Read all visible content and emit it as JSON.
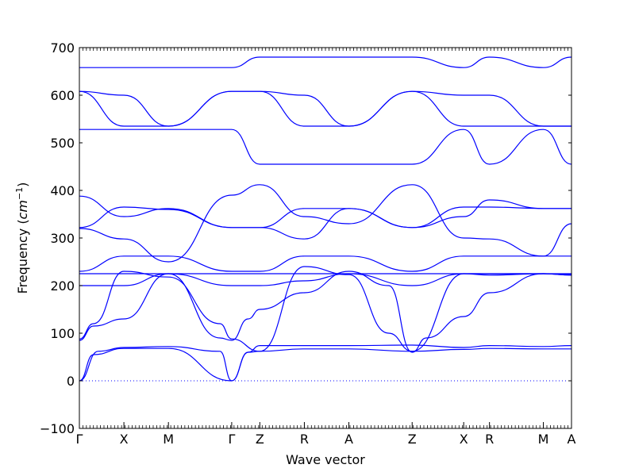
{
  "chart_data": {
    "type": "line",
    "xlabel": "Wave vector",
    "ylabel_text": "Frequency (",
    "ylabel_unit": "cm",
    "ylabel_exp": "−1",
    "ylabel_close": ")",
    "ylim": [
      -100,
      700
    ],
    "yticks": [
      -100,
      0,
      100,
      200,
      300,
      400,
      500,
      600,
      700
    ],
    "xlim": [
      0,
      10.5
    ],
    "kpoints": [
      {
        "label": "Γ",
        "x": 0
      },
      {
        "label": "X",
        "x": 0.95
      },
      {
        "label": "M",
        "x": 1.9
      },
      {
        "label": "Γ",
        "x": 3.25
      },
      {
        "label": "Z",
        "x": 3.85
      },
      {
        "label": "R",
        "x": 4.8
      },
      {
        "label": "A",
        "x": 5.75
      },
      {
        "label": "Z",
        "x": 7.1
      },
      {
        "label": "X",
        "x": 8.2
      },
      {
        "label": "R",
        "x": 8.75
      },
      {
        "label": "M",
        "x": 9.9
      },
      {
        "label": "A",
        "x": 10.5
      }
    ],
    "zero_line": 0,
    "line_color": "#0000ff",
    "series": [
      {
        "x": [
          0,
          0.3,
          0.95,
          1.9,
          3.25,
          3.6,
          3.85,
          4.8,
          5.75,
          7.1,
          8.2,
          8.75,
          9.9,
          10.5
        ],
        "y": [
          0,
          55,
          68,
          68,
          0,
          60,
          62,
          67,
          67,
          62,
          66,
          68,
          67,
          67
        ]
      },
      {
        "x": [
          0,
          0.4,
          0.95,
          1.9,
          3.0,
          3.25,
          3.6,
          3.85,
          4.8,
          5.75,
          7.1,
          8.2,
          8.75,
          9.9,
          10.5
        ],
        "y": [
          0,
          62,
          70,
          72,
          62,
          0,
          60,
          74,
          74,
          74,
          75,
          70,
          74,
          72,
          74
        ]
      },
      {
        "x": [
          0,
          0.3,
          0.95,
          1.9,
          3.0,
          3.25,
          3.6,
          3.85,
          4.8,
          5.75,
          6.6,
          7.1,
          7.4,
          8.2,
          8.75,
          9.9,
          10.5
        ],
        "y": [
          85,
          115,
          130,
          225,
          90,
          85,
          130,
          150,
          185,
          230,
          200,
          60,
          90,
          135,
          185,
          225,
          222
        ]
      },
      {
        "x": [
          0,
          0.3,
          0.95,
          1.9,
          3.0,
          3.25,
          3.85,
          4.8,
          5.75,
          6.6,
          7.1,
          8.2,
          8.75,
          9.9,
          10.5
        ],
        "y": [
          88,
          120,
          230,
          218,
          120,
          88,
          62,
          240,
          223,
          100,
          62,
          225,
          225,
          225,
          222
        ]
      },
      {
        "x": [
          0,
          0.95,
          1.9,
          3.25,
          3.85,
          4.8,
          5.75,
          7.1,
          8.2,
          8.75,
          9.9,
          10.5
        ],
        "y": [
          200,
          200,
          225,
          200,
          200,
          210,
          225,
          200,
          225,
          222,
          225,
          224
        ]
      },
      {
        "x": [
          0,
          0.95,
          1.9,
          3.25,
          3.85,
          4.8,
          5.75,
          7.1,
          8.2,
          8.75,
          9.9,
          10.5
        ],
        "y": [
          225,
          225,
          225,
          225,
          225,
          225,
          225,
          225,
          225,
          225,
          225,
          225
        ]
      },
      {
        "x": [
          0,
          0.95,
          1.9,
          3.25,
          3.85,
          4.8,
          5.75,
          7.1,
          8.2,
          8.75,
          9.9,
          10.5
        ],
        "y": [
          230,
          262,
          262,
          230,
          230,
          262,
          262,
          230,
          262,
          262,
          262,
          262
        ]
      },
      {
        "x": [
          0,
          0.95,
          1.9,
          3.25,
          3.85,
          4.8,
          5.75,
          7.1,
          8.2,
          8.75,
          9.9,
          10.5
        ],
        "y": [
          320,
          298,
          250,
          390,
          412,
          345,
          330,
          412,
          300,
          298,
          262,
          330
        ]
      },
      {
        "x": [
          0,
          0.95,
          1.9,
          3.25,
          3.85,
          4.8,
          5.75,
          7.1,
          8.2,
          8.75,
          9.9,
          10.5
        ],
        "y": [
          322,
          365,
          360,
          322,
          322,
          298,
          362,
          322,
          345,
          380,
          362,
          362
        ]
      },
      {
        "x": [
          0,
          0.95,
          1.9,
          3.25,
          3.85,
          4.8,
          5.75,
          7.1,
          8.2,
          8.75,
          9.9,
          10.5
        ],
        "y": [
          388,
          345,
          362,
          322,
          322,
          362,
          362,
          322,
          365,
          365,
          362,
          362
        ]
      },
      {
        "x": [
          0,
          0.95,
          1.9,
          3.25,
          3.85,
          4.8,
          5.75,
          7.1,
          8.2,
          8.75,
          9.9,
          10.5
        ],
        "y": [
          528,
          528,
          528,
          528,
          455,
          455,
          455,
          455,
          528,
          455,
          528,
          455
        ]
      },
      {
        "x": [
          0,
          0.95,
          1.9,
          3.25,
          3.85,
          4.8,
          5.75,
          7.1,
          8.2,
          8.75,
          9.9,
          10.5
        ],
        "y": [
          608,
          535,
          535,
          608,
          608,
          535,
          535,
          608,
          535,
          535,
          535,
          535
        ]
      },
      {
        "x": [
          0,
          0.95,
          1.9,
          3.25,
          3.85,
          4.8,
          5.75,
          7.1,
          8.2,
          8.75,
          9.9,
          10.5
        ],
        "y": [
          608,
          600,
          535,
          608,
          608,
          600,
          535,
          608,
          600,
          600,
          535,
          535
        ]
      },
      {
        "x": [
          0,
          0.95,
          1.9,
          3.25,
          3.85,
          4.8,
          5.75,
          7.1,
          8.2,
          8.75,
          9.9,
          10.5
        ],
        "y": [
          658,
          658,
          658,
          658,
          680,
          680,
          680,
          680,
          658,
          680,
          658,
          680
        ]
      }
    ]
  }
}
